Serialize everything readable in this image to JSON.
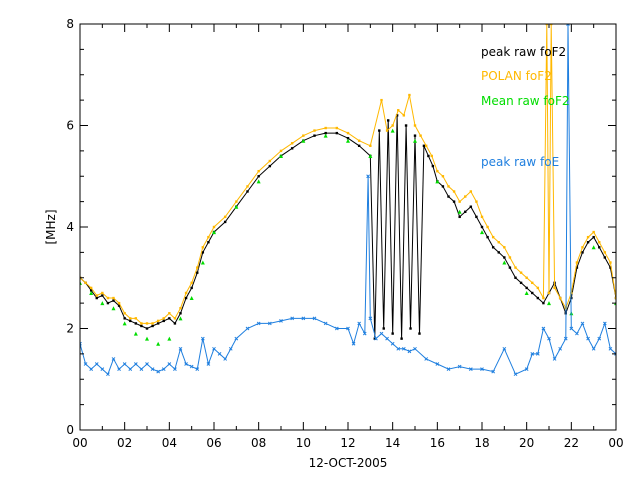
{
  "chart_data": {
    "type": "line",
    "xlabel": "12-OCT-2005",
    "ylabel": "[MHz]",
    "xlim": [
      0,
      24
    ],
    "ylim": [
      0,
      8
    ],
    "x_ticks": [
      "00",
      "02",
      "04",
      "06",
      "08",
      "10",
      "12",
      "14",
      "16",
      "18",
      "20",
      "22",
      "00"
    ],
    "y_ticks": [
      "0",
      "2",
      "4",
      "6",
      "8"
    ],
    "grid": false,
    "legend_position": "top-right",
    "series": [
      {
        "name": "peak raw foF2",
        "color": "#000000",
        "x": [
          0.0,
          0.25,
          0.5,
          0.75,
          1.0,
          1.25,
          1.5,
          1.75,
          2.0,
          2.25,
          2.5,
          2.75,
          3.0,
          3.25,
          3.5,
          3.75,
          4.0,
          4.25,
          4.5,
          4.75,
          5.0,
          5.25,
          5.5,
          5.75,
          6.0,
          6.5,
          7.0,
          7.5,
          8.0,
          8.5,
          9.0,
          9.5,
          10.0,
          10.5,
          11.0,
          11.5,
          12.0,
          12.5,
          13.0,
          13.2,
          13.4,
          13.6,
          13.8,
          14.0,
          14.2,
          14.4,
          14.6,
          14.8,
          15.0,
          15.2,
          15.4,
          15.6,
          15.8,
          16.0,
          16.25,
          16.5,
          16.75,
          17.0,
          17.25,
          17.5,
          17.75,
          18.0,
          18.25,
          18.5,
          18.75,
          19.0,
          19.25,
          19.5,
          19.75,
          20.0,
          20.25,
          20.5,
          20.75,
          21.0,
          21.25,
          21.5,
          21.75,
          22.0,
          22.25,
          22.5,
          22.75,
          23.0,
          23.25,
          23.5,
          23.75,
          24.0
        ],
        "values": [
          3.0,
          2.9,
          2.75,
          2.6,
          2.65,
          2.5,
          2.55,
          2.45,
          2.2,
          2.15,
          2.1,
          2.05,
          2.0,
          2.05,
          2.1,
          2.15,
          2.2,
          2.1,
          2.3,
          2.6,
          2.8,
          3.1,
          3.5,
          3.7,
          3.9,
          4.1,
          4.4,
          4.7,
          5.0,
          5.2,
          5.4,
          5.55,
          5.7,
          5.8,
          5.85,
          5.85,
          5.75,
          5.6,
          5.4,
          1.8,
          5.9,
          2.0,
          6.1,
          1.9,
          6.2,
          1.8,
          6.0,
          2.0,
          5.8,
          1.9,
          5.6,
          5.4,
          5.2,
          4.9,
          4.8,
          4.6,
          4.5,
          4.2,
          4.3,
          4.4,
          4.2,
          4.0,
          3.8,
          3.6,
          3.5,
          3.4,
          3.2,
          3.0,
          2.9,
          2.8,
          2.7,
          2.6,
          2.5,
          2.7,
          2.9,
          2.6,
          2.3,
          2.6,
          3.2,
          3.5,
          3.7,
          3.8,
          3.6,
          3.4,
          3.2,
          2.6
        ]
      },
      {
        "name": "POLAN foF2",
        "color": "#ffb800",
        "x": [
          0.0,
          0.25,
          0.5,
          0.75,
          1.0,
          1.25,
          1.5,
          1.75,
          2.0,
          2.25,
          2.5,
          2.75,
          3.0,
          3.25,
          3.5,
          3.75,
          4.0,
          4.25,
          4.5,
          4.75,
          5.0,
          5.25,
          5.5,
          5.75,
          6.0,
          6.5,
          7.0,
          7.5,
          8.0,
          8.5,
          9.0,
          9.5,
          10.0,
          10.5,
          11.0,
          11.5,
          12.0,
          12.5,
          13.0,
          13.5,
          13.75,
          14.0,
          14.25,
          14.5,
          14.75,
          15.0,
          15.25,
          15.5,
          15.75,
          16.0,
          16.25,
          16.5,
          16.75,
          17.0,
          17.25,
          17.5,
          17.75,
          18.0,
          18.25,
          18.5,
          18.75,
          19.0,
          19.25,
          19.5,
          19.75,
          20.0,
          20.25,
          20.5,
          20.75,
          20.9,
          21.0,
          21.1,
          21.25,
          21.5,
          21.75,
          22.0,
          22.25,
          22.5,
          22.75,
          23.0,
          23.25,
          23.5,
          23.75,
          24.0
        ],
        "values": [
          3.0,
          2.9,
          2.8,
          2.65,
          2.7,
          2.6,
          2.6,
          2.5,
          2.3,
          2.2,
          2.2,
          2.1,
          2.1,
          2.1,
          2.15,
          2.2,
          2.3,
          2.2,
          2.4,
          2.7,
          2.9,
          3.2,
          3.6,
          3.8,
          4.0,
          4.2,
          4.5,
          4.8,
          5.1,
          5.3,
          5.5,
          5.65,
          5.8,
          5.9,
          5.95,
          5.95,
          5.85,
          5.7,
          5.6,
          6.5,
          5.9,
          6.0,
          6.3,
          6.2,
          6.6,
          6.0,
          5.8,
          5.6,
          5.4,
          5.1,
          5.0,
          4.8,
          4.7,
          4.5,
          4.6,
          4.7,
          4.5,
          4.2,
          4.0,
          3.8,
          3.7,
          3.6,
          3.4,
          3.2,
          3.1,
          3.0,
          2.9,
          2.8,
          2.6,
          8.0,
          2.7,
          8.0,
          2.8,
          2.6,
          2.4,
          2.7,
          3.3,
          3.6,
          3.8,
          3.9,
          3.7,
          3.5,
          3.3,
          2.6
        ]
      },
      {
        "name": "Mean raw foF2",
        "color": "#00dd00",
        "x": [
          0.0,
          0.5,
          1.0,
          1.5,
          2.0,
          2.5,
          3.0,
          3.5,
          4.0,
          4.5,
          5.0,
          5.5,
          6.0,
          7.0,
          8.0,
          9.0,
          10.0,
          11.0,
          12.0,
          13.0,
          14.0,
          15.0,
          16.0,
          17.0,
          18.0,
          19.0,
          20.0,
          21.0,
          22.0,
          23.0,
          24.0
        ],
        "values": [
          2.9,
          2.7,
          2.5,
          2.4,
          2.1,
          1.9,
          1.8,
          1.7,
          1.8,
          2.2,
          2.6,
          3.3,
          3.9,
          4.4,
          4.9,
          5.4,
          5.7,
          5.8,
          5.7,
          5.4,
          5.9,
          5.7,
          4.9,
          4.3,
          3.9,
          3.3,
          2.7,
          2.5,
          2.3,
          3.6,
          2.5
        ]
      },
      {
        "name": "peak raw foE",
        "color": "#1f7fdf",
        "x": [
          0.0,
          0.25,
          0.5,
          0.75,
          1.0,
          1.25,
          1.5,
          1.75,
          2.0,
          2.25,
          2.5,
          2.75,
          3.0,
          3.25,
          3.5,
          3.75,
          4.0,
          4.25,
          4.5,
          4.75,
          5.0,
          5.25,
          5.5,
          5.75,
          6.0,
          6.25,
          6.5,
          6.75,
          7.0,
          7.5,
          8.0,
          8.5,
          9.0,
          9.5,
          10.0,
          10.5,
          11.0,
          11.5,
          12.0,
          12.25,
          12.5,
          12.75,
          12.9,
          13.0,
          13.25,
          13.5,
          13.75,
          14.0,
          14.25,
          14.5,
          14.75,
          15.0,
          15.5,
          16.0,
          16.5,
          17.0,
          17.5,
          18.0,
          18.5,
          19.0,
          19.5,
          20.0,
          20.25,
          20.5,
          20.75,
          21.0,
          21.25,
          21.5,
          21.75,
          21.85,
          22.0,
          22.25,
          22.5,
          22.75,
          23.0,
          23.25,
          23.5,
          23.75,
          24.0
        ],
        "values": [
          1.7,
          1.3,
          1.2,
          1.3,
          1.2,
          1.1,
          1.4,
          1.2,
          1.3,
          1.2,
          1.3,
          1.2,
          1.3,
          1.2,
          1.15,
          1.2,
          1.3,
          1.2,
          1.6,
          1.3,
          1.25,
          1.2,
          1.8,
          1.3,
          1.6,
          1.5,
          1.4,
          1.6,
          1.8,
          2.0,
          2.1,
          2.1,
          2.15,
          2.2,
          2.2,
          2.2,
          2.1,
          2.0,
          2.0,
          1.7,
          2.1,
          1.9,
          5.0,
          2.2,
          1.8,
          1.9,
          1.8,
          1.7,
          1.6,
          1.6,
          1.55,
          1.6,
          1.4,
          1.3,
          1.2,
          1.25,
          1.2,
          1.2,
          1.15,
          1.6,
          1.1,
          1.2,
          1.5,
          1.5,
          2.0,
          1.8,
          1.4,
          1.6,
          1.8,
          8.0,
          2.0,
          1.9,
          2.1,
          1.8,
          1.6,
          1.8,
          2.1,
          1.6,
          1.5
        ]
      }
    ]
  }
}
